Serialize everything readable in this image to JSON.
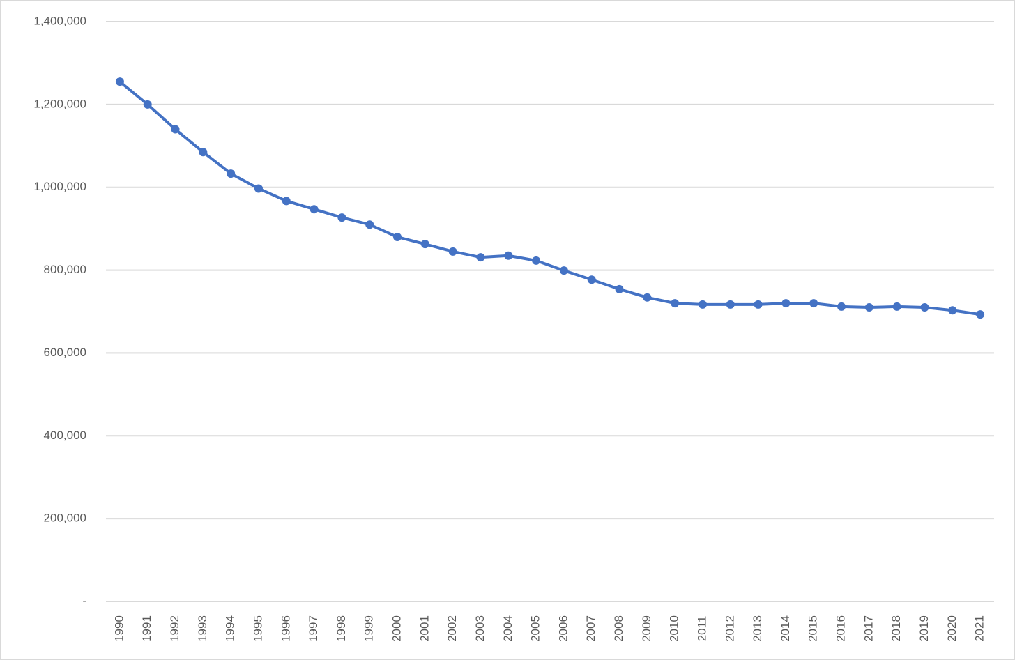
{
  "chart_data": {
    "type": "line",
    "categories": [
      "1990",
      "1991",
      "1992",
      "1993",
      "1994",
      "1995",
      "1996",
      "1997",
      "1998",
      "1999",
      "2000",
      "2001",
      "2002",
      "2003",
      "2004",
      "2005",
      "2006",
      "2007",
      "2008",
      "2009",
      "2010",
      "2011",
      "2012",
      "2013",
      "2014",
      "2015",
      "2016",
      "2017",
      "2018",
      "2019",
      "2020",
      "2021"
    ],
    "series": [
      {
        "color": "#4472c4",
        "values": [
          1255000,
          1200000,
          1140000,
          1085000,
          1033000,
          997000,
          967000,
          947000,
          927000,
          910000,
          880000,
          863000,
          845000,
          831000,
          835000,
          823000,
          799000,
          777000,
          754000,
          734000,
          720000,
          717000,
          717000,
          717000,
          720000,
          720000,
          712000,
          710000,
          712000,
          710000,
          703000,
          693000
        ]
      }
    ],
    "ylim": [
      0,
      1400000
    ],
    "yticks": [
      {
        "value": 0,
        "label": "-"
      },
      {
        "value": 200000,
        "label": "200,000"
      },
      {
        "value": 400000,
        "label": "400,000"
      },
      {
        "value": 600000,
        "label": "600,000"
      },
      {
        "value": 800000,
        "label": "800,000"
      },
      {
        "value": 1000000,
        "label": "1,000,000"
      },
      {
        "value": 1200000,
        "label": "1,200,000"
      },
      {
        "value": 1400000,
        "label": "1,400,000"
      }
    ],
    "grid": true
  }
}
